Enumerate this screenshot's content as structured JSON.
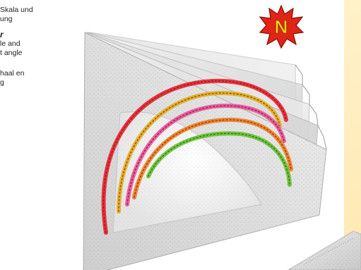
{
  "text_block": {
    "lines": [
      "Skala und",
      "ung",
      "r",
      "le and",
      "t angle",
      "haal en",
      "g"
    ]
  },
  "badge": {
    "letter": "N",
    "fill_color": "#e02418",
    "letter_color": "#ffd21a"
  },
  "colors": {
    "page_bg": "#ffffff",
    "right_band": "#ffecb8",
    "rainbow": [
      "#e8202a",
      "#e9a819",
      "#ec4f92",
      "#f07a1d",
      "#62c02a"
    ]
  }
}
